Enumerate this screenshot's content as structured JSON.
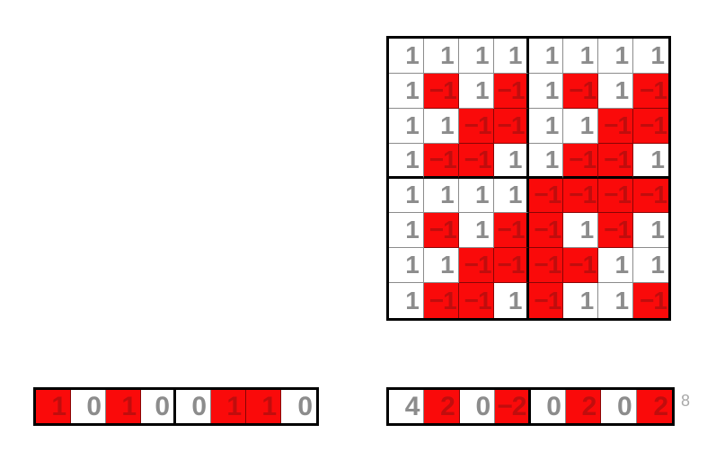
{
  "page_number": "8",
  "colors": {
    "slide_bg": "#ffffff",
    "highlight_bg": "#fa0a0a",
    "highlight_text": "#c00d0d",
    "value_text": "#8c8c8c",
    "border": "#000000",
    "page_number_text": "#a9a9a9"
  },
  "hadamard_matrix": {
    "rows": [
      [
        1,
        1,
        1,
        1,
        1,
        1,
        1,
        1
      ],
      [
        1,
        -1,
        1,
        -1,
        1,
        -1,
        1,
        -1
      ],
      [
        1,
        1,
        -1,
        -1,
        1,
        1,
        -1,
        -1
      ],
      [
        1,
        -1,
        -1,
        1,
        1,
        -1,
        -1,
        1
      ],
      [
        1,
        1,
        1,
        1,
        -1,
        -1,
        -1,
        -1
      ],
      [
        1,
        -1,
        1,
        -1,
        -1,
        1,
        -1,
        1
      ],
      [
        1,
        1,
        -1,
        -1,
        -1,
        -1,
        1,
        1
      ],
      [
        1,
        -1,
        -1,
        1,
        -1,
        1,
        1,
        -1
      ]
    ]
  },
  "input_vector": {
    "values": [
      1,
      0,
      1,
      0,
      0,
      1,
      1,
      0
    ],
    "highlighted": [
      true,
      false,
      true,
      false,
      false,
      true,
      true,
      false
    ]
  },
  "output_vector": {
    "values": [
      4,
      2,
      0,
      -2,
      0,
      2,
      0,
      2
    ],
    "highlighted": [
      false,
      true,
      false,
      true,
      false,
      true,
      false,
      true
    ]
  }
}
